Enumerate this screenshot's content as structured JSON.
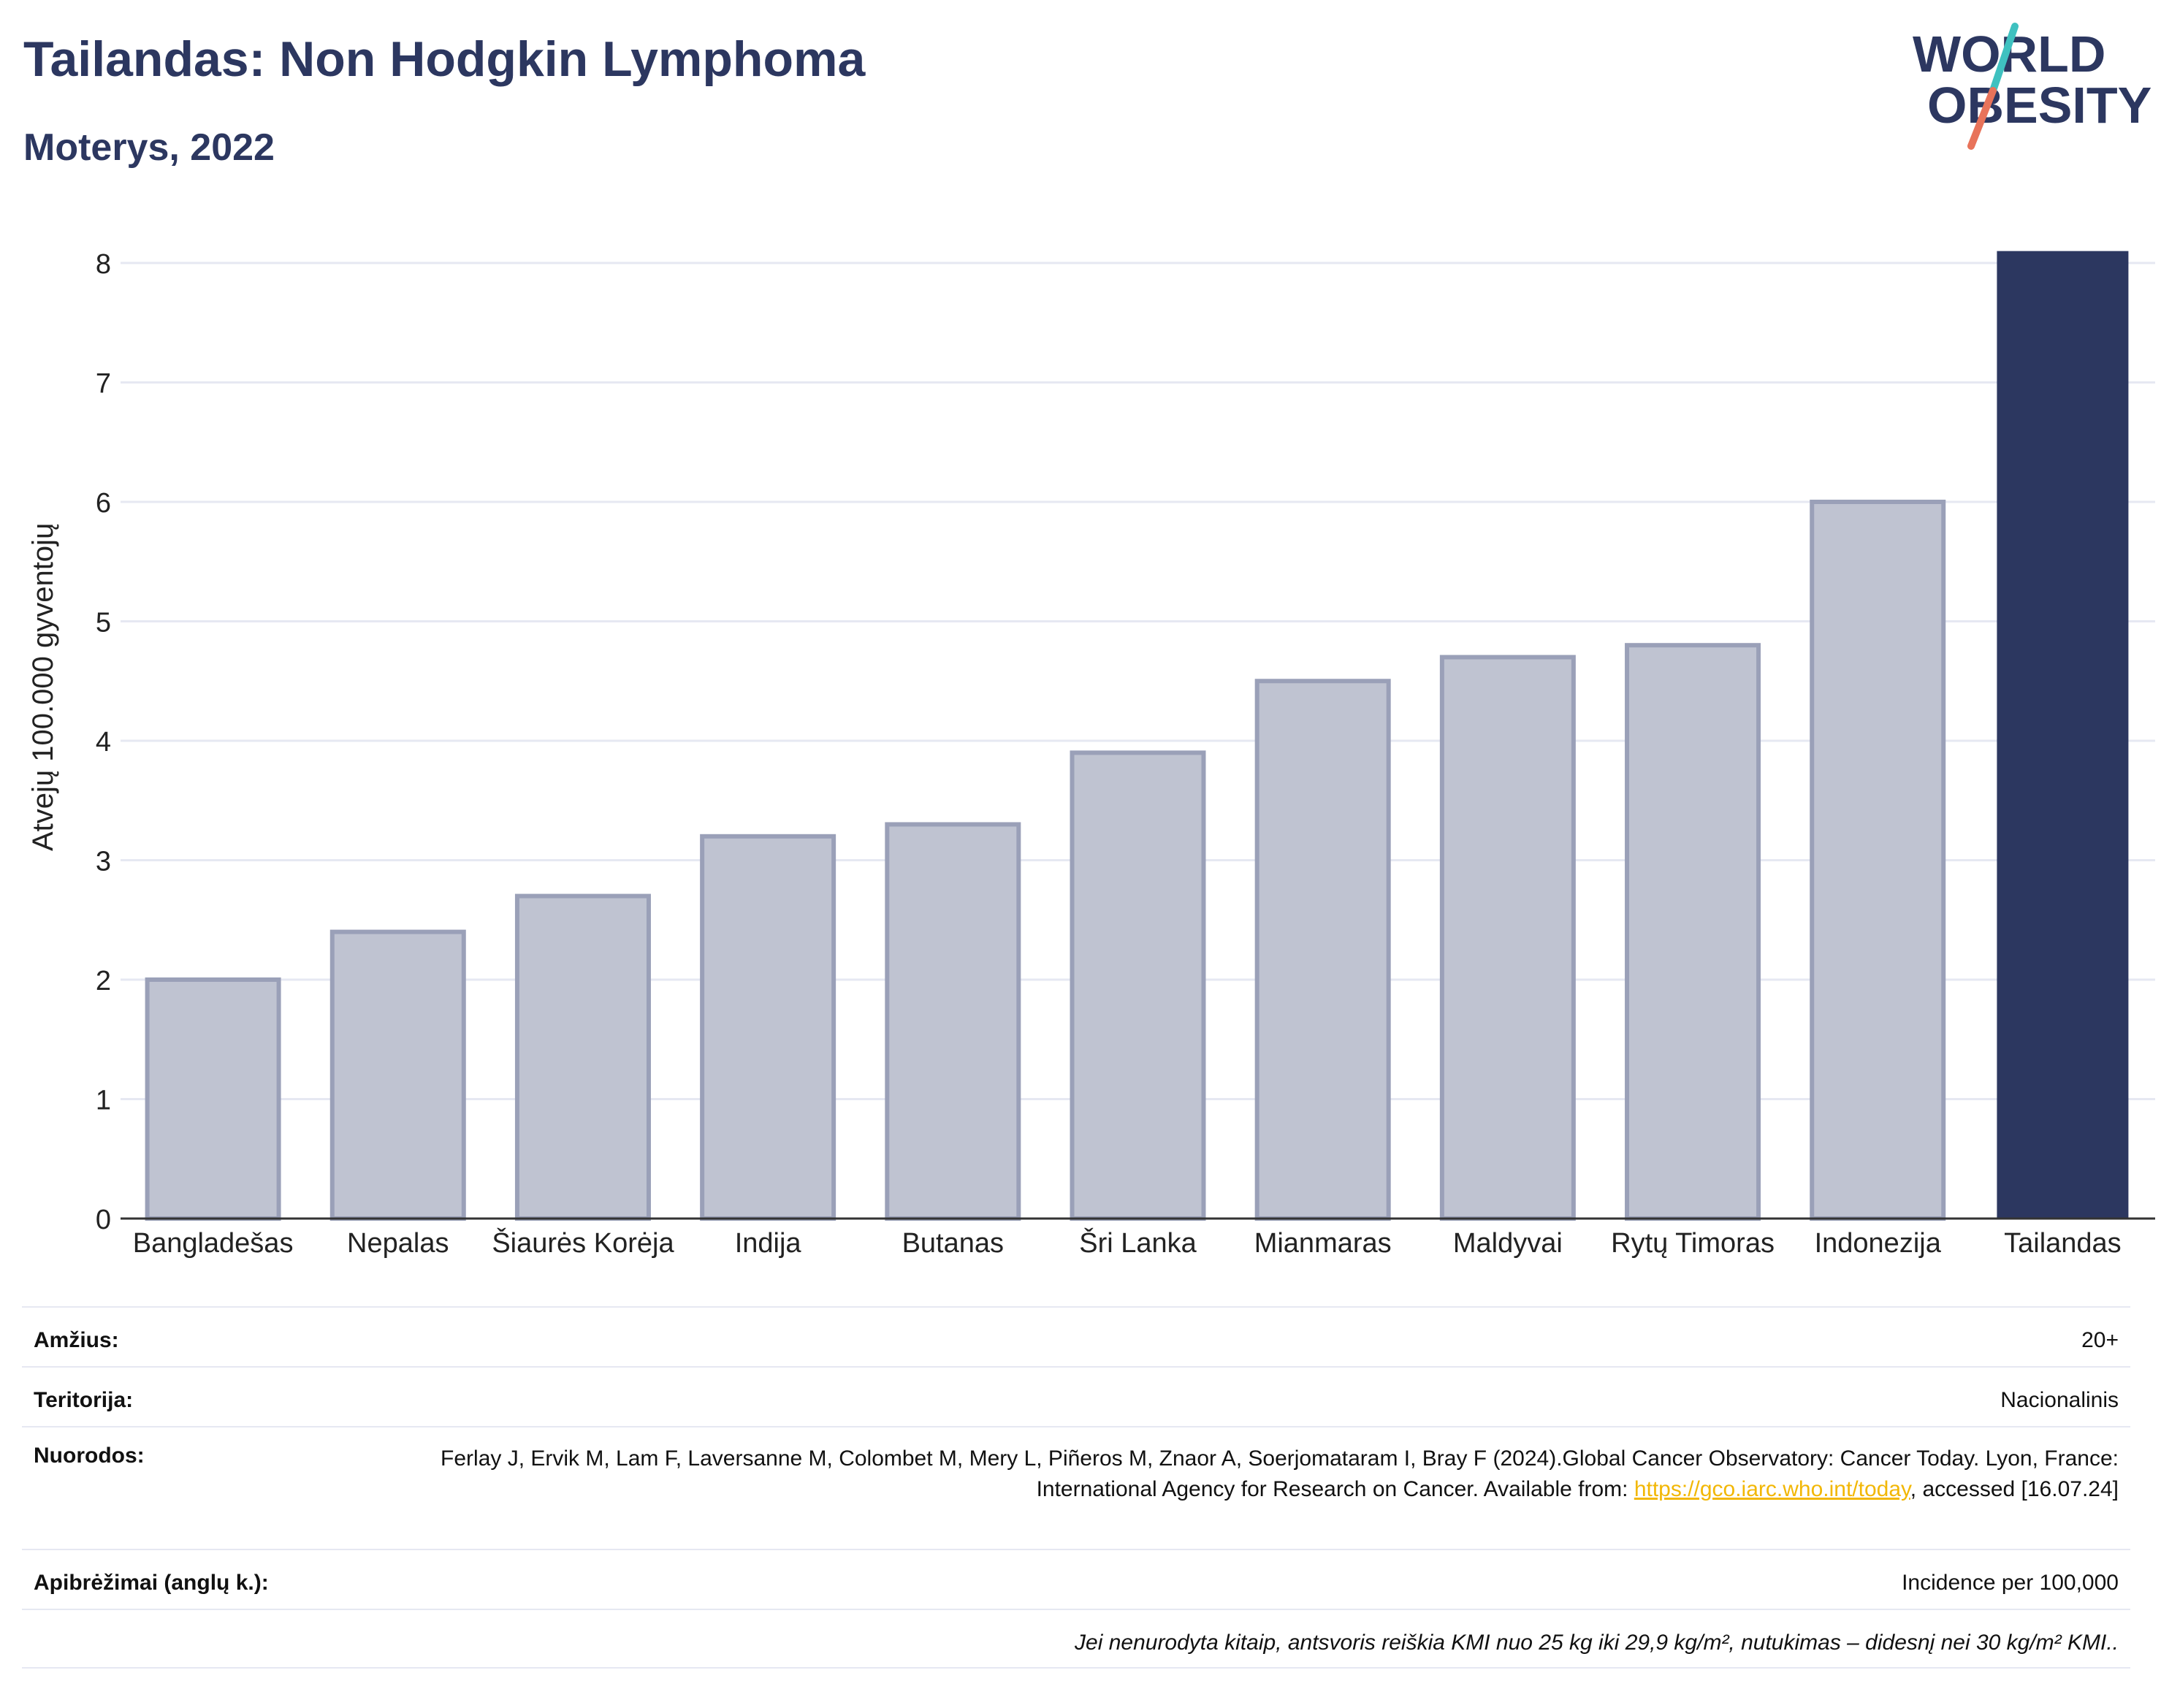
{
  "header": {
    "title": "Tailandas: Non Hodgkin Lymphoma",
    "subtitle": "Moterys, 2022"
  },
  "logo": {
    "line1": "WORLD",
    "line2": "OBESITY",
    "slash_colors": [
      "#3fc1c0",
      "#e8735a"
    ]
  },
  "colors": {
    "highlight_bar": "#2c3760",
    "other_bar": "#bfc3d1",
    "other_bar_border": "#9aa0b8",
    "title": "#2c3760",
    "link": "#f2b705"
  },
  "chart_data": {
    "type": "bar",
    "title": "Tailandas: Non Hodgkin Lymphoma",
    "subtitle": "Moterys, 2022",
    "ylabel": "Atvejų 100.000 gyventojų",
    "xlabel": "",
    "categories": [
      "Bangladešas",
      "Nepalas",
      "Šiaurės Korėja",
      "Indija",
      "Butanas",
      "Šri Lanka",
      "Mianmaras",
      "Maldyvai",
      "Rytų Timoras",
      "Indonezija",
      "Tailandas"
    ],
    "values": [
      2.0,
      2.4,
      2.7,
      3.2,
      3.3,
      3.9,
      4.5,
      4.7,
      4.8,
      6.0,
      8.1
    ],
    "highlight": "Tailandas",
    "ylim": [
      0,
      8.3
    ],
    "yticks": [
      0,
      1,
      2,
      3,
      4,
      5,
      6,
      7,
      8
    ],
    "grid": true
  },
  "info": {
    "age_label": "Amžius:",
    "age_value": "20+",
    "territory_label": "Teritorija:",
    "territory_value": "Nacionalinis",
    "refs_label": "Nuorodos:",
    "refs_text_1": "Ferlay J, Ervik M, Lam F, Laversanne M, Colombet M, Mery L, Piñeros M, Znaor A, Soerjomataram I, Bray F (2024).Global Cancer Observatory: Cancer Today. Lyon, France: International Agency for Research on Cancer. Available from: ",
    "refs_link": "https://gco.iarc.who.int/today",
    "refs_text_2": ", accessed [16.07.24]",
    "defs_label": "Apibrėžimai (anglų k.):",
    "defs_value": "Incidence per 100,000",
    "note": "Jei nenurodyta kitaip, antsvoris reiškia KMI nuo 25 kg iki 29,9 kg/m², nutukimas – didesnį nei 30 kg/m² KMI.."
  }
}
